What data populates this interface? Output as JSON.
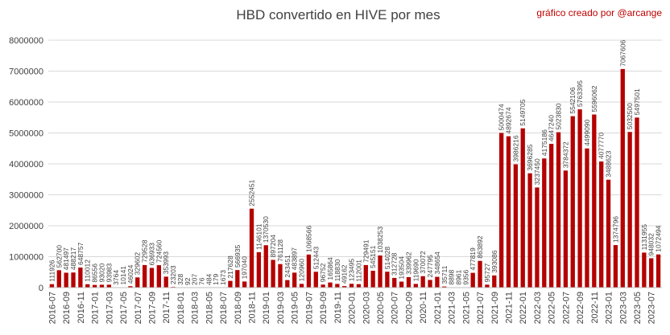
{
  "chart_data": {
    "type": "bar",
    "title": "HBD convertido en HIVE por mes",
    "annotation": "gráfico creado por @arcange",
    "categories": [
      "2016-07",
      null,
      "2016-09",
      null,
      "2016-11",
      null,
      "2017-01",
      null,
      "2017-03",
      null,
      "2017-05",
      null,
      "2017-07",
      null,
      "2017-09",
      null,
      "2017-11",
      null,
      "2018-01",
      null,
      "2018-03",
      null,
      "2018-05",
      null,
      "2018-07",
      null,
      "2018-09",
      null,
      "2018-11",
      null,
      "2019-01",
      null,
      "2019-03",
      null,
      "2019-05",
      null,
      "2019-07",
      null,
      "2019-09",
      null,
      "2019-11",
      null,
      "2020-01",
      null,
      "2020-03",
      null,
      "2020-05",
      null,
      "2020-07",
      null,
      "2020-09",
      null,
      "2020-11",
      null,
      "2021-01",
      null,
      "2021-03",
      null,
      "2021-05",
      null,
      "2021-07",
      null,
      "2021-09",
      null,
      "2021-11",
      null,
      "2022-01",
      null,
      "2022-03",
      null,
      "2022-05",
      null,
      "2022-07",
      null,
      "2022-09",
      null,
      "2022-11",
      null,
      "2023-01",
      null,
      "2023-03",
      null,
      "2023-05",
      null,
      "2023-07",
      null
    ],
    "values": [
      111926,
      562700,
      481497,
      488217,
      648757,
      110012,
      86556,
      93020,
      93983,
      3764,
      10141,
      46024,
      329602,
      729528,
      636933,
      724560,
      353993,
      23203,
      328,
      92,
      207,
      76,
      484,
      179,
      1673,
      217628,
      566935,
      197040,
      2552451,
      1146101,
      1370530,
      897204,
      761128,
      243451,
      483897,
      120960,
      1068566,
      512443,
      96752,
      165864,
      118830,
      49162,
      123495,
      112001,
      729491,
      545151,
      1038253,
      514028,
      312728,
      193504,
      339962,
      119690,
      370072,
      247795,
      348654,
      35711,
      8898,
      8961,
      9356,
      477819,
      863892,
      95727,
      393086,
      5000474,
      4892674,
      3986216,
      5149705,
      3696285,
      3237450,
      4175186,
      4647240,
      5023830,
      3784372,
      5542106,
      5763395,
      4499090,
      5596062,
      4077770,
      3488623,
      1374796,
      7067606,
      5032500,
      5497501,
      1131955,
      948032,
      1072494
    ],
    "color": "#b40000",
    "ylim": [
      0,
      8000000
    ],
    "yticks": [
      0,
      1000000,
      2000000,
      3000000,
      4000000,
      5000000,
      6000000,
      7000000,
      8000000
    ],
    "grid": true
  }
}
